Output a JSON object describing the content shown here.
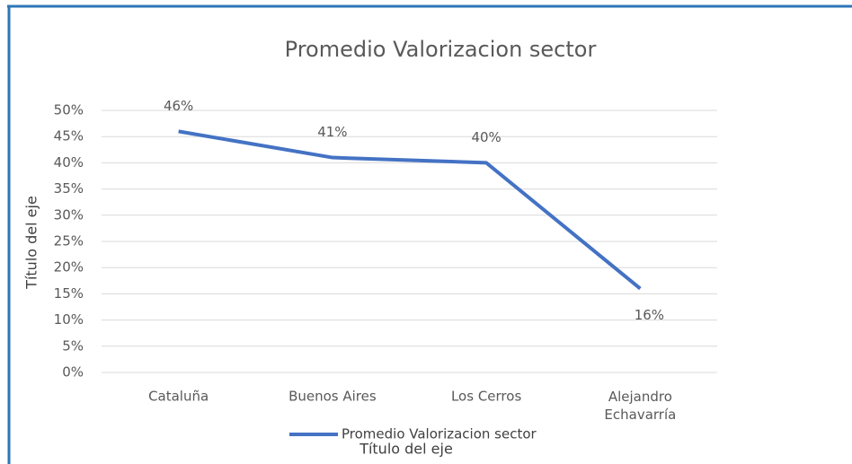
{
  "chart_data": {
    "type": "line",
    "title": "Promedio Valorizacion sector",
    "categories": [
      "Cataluña",
      "Buenos Aires",
      "Los Cerros",
      "Alejandro Echavarría"
    ],
    "series": [
      {
        "name": "Promedio Valorizacion sector",
        "color": "#4472c4",
        "values": [
          46,
          41,
          40,
          16
        ],
        "value_labels": [
          "46%",
          "41%",
          "40%",
          "16%"
        ]
      }
    ],
    "ylim": [
      0,
      50
    ],
    "yticks": [
      {
        "value": 0,
        "label": "0%"
      },
      {
        "value": 5,
        "label": "5%"
      },
      {
        "value": 10,
        "label": "10%"
      },
      {
        "value": 15,
        "label": "15%"
      },
      {
        "value": 20,
        "label": "20%"
      },
      {
        "value": 25,
        "label": "25%"
      },
      {
        "value": 30,
        "label": "30%"
      },
      {
        "value": 35,
        "label": "35%"
      },
      {
        "value": 40,
        "label": "40%"
      },
      {
        "value": 45,
        "label": "45%"
      },
      {
        "value": 50,
        "label": "50%"
      }
    ],
    "xlabel": "Título del eje",
    "ylabel": "Título del eje",
    "grid": true,
    "legend": "bottom"
  }
}
